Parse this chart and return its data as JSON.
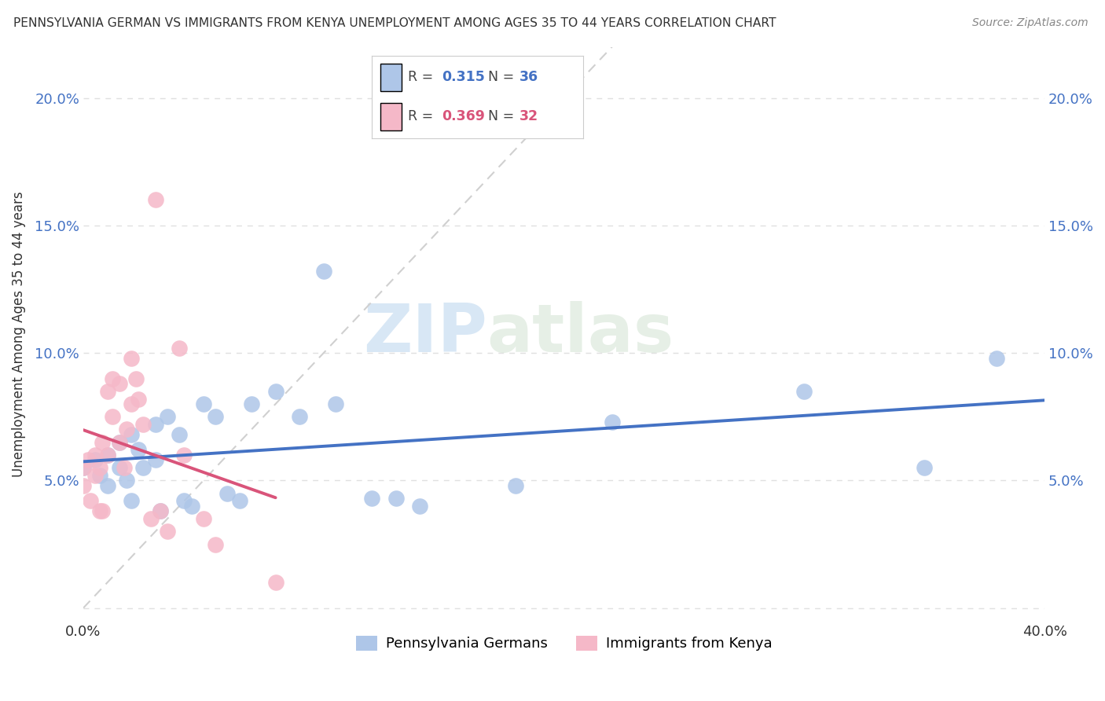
{
  "title": "PENNSYLVANIA GERMAN VS IMMIGRANTS FROM KENYA UNEMPLOYMENT AMONG AGES 35 TO 44 YEARS CORRELATION CHART",
  "source": "Source: ZipAtlas.com",
  "ylabel": "Unemployment Among Ages 35 to 44 years",
  "xlim": [
    0.0,
    0.4
  ],
  "ylim": [
    -0.005,
    0.22
  ],
  "yticks": [
    0.0,
    0.05,
    0.1,
    0.15,
    0.2
  ],
  "ytick_labels": [
    "",
    "5.0%",
    "10.0%",
    "15.0%",
    "20.0%"
  ],
  "xtick_labels": [
    "0.0%",
    "",
    "",
    "",
    "",
    "",
    "",
    "",
    "40.0%"
  ],
  "watermark_zip": "ZIP",
  "watermark_atlas": "atlas",
  "blue_color": "#aec6e8",
  "pink_color": "#f5b8c8",
  "blue_line_color": "#4472c4",
  "pink_line_color": "#d9547a",
  "diag_line_color": "#d0d0d0",
  "R_blue": 0.315,
  "N_blue": 36,
  "R_pink": 0.369,
  "N_pink": 32,
  "blue_scatter_x": [
    0.0,
    0.005,
    0.007,
    0.01,
    0.01,
    0.015,
    0.015,
    0.018,
    0.02,
    0.02,
    0.023,
    0.025,
    0.03,
    0.03,
    0.032,
    0.035,
    0.04,
    0.042,
    0.045,
    0.05,
    0.055,
    0.06,
    0.065,
    0.07,
    0.08,
    0.09,
    0.1,
    0.105,
    0.12,
    0.13,
    0.14,
    0.18,
    0.22,
    0.3,
    0.35,
    0.38
  ],
  "blue_scatter_y": [
    0.055,
    0.058,
    0.052,
    0.06,
    0.048,
    0.065,
    0.055,
    0.05,
    0.068,
    0.042,
    0.062,
    0.055,
    0.072,
    0.058,
    0.038,
    0.075,
    0.068,
    0.042,
    0.04,
    0.08,
    0.075,
    0.045,
    0.042,
    0.08,
    0.085,
    0.075,
    0.132,
    0.08,
    0.043,
    0.043,
    0.04,
    0.048,
    0.073,
    0.085,
    0.055,
    0.098
  ],
  "pink_scatter_x": [
    0.0,
    0.0,
    0.002,
    0.003,
    0.005,
    0.005,
    0.007,
    0.007,
    0.008,
    0.008,
    0.01,
    0.01,
    0.012,
    0.012,
    0.015,
    0.015,
    0.017,
    0.018,
    0.02,
    0.02,
    0.022,
    0.023,
    0.025,
    0.028,
    0.03,
    0.032,
    0.035,
    0.04,
    0.042,
    0.05,
    0.055,
    0.08
  ],
  "pink_scatter_y": [
    0.055,
    0.048,
    0.058,
    0.042,
    0.06,
    0.052,
    0.055,
    0.038,
    0.065,
    0.038,
    0.06,
    0.085,
    0.09,
    0.075,
    0.088,
    0.065,
    0.055,
    0.07,
    0.098,
    0.08,
    0.09,
    0.082,
    0.072,
    0.035,
    0.16,
    0.038,
    0.03,
    0.102,
    0.06,
    0.035,
    0.025,
    0.01
  ]
}
